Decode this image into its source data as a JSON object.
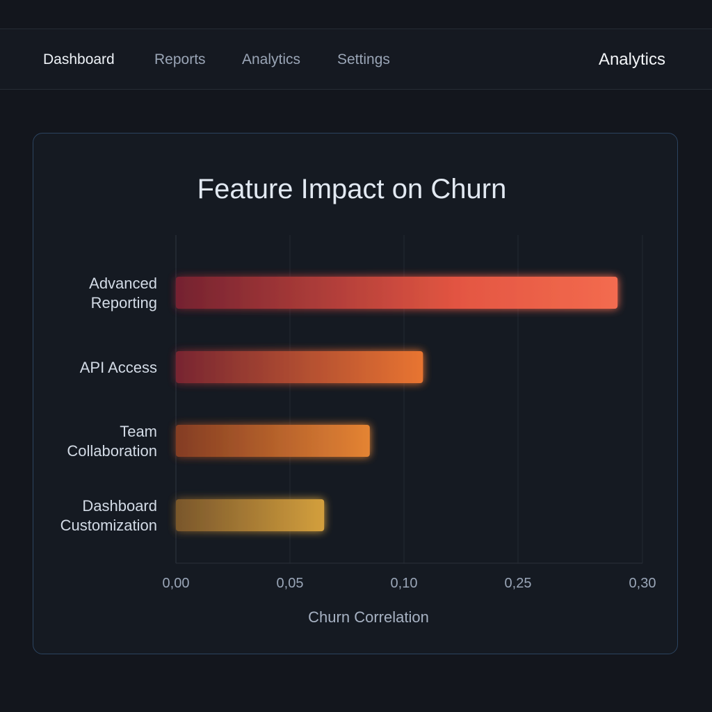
{
  "nav": {
    "items": [
      {
        "label": "Dashboard",
        "active": true
      },
      {
        "label": "Reports",
        "active": false
      },
      {
        "label": "Analytics",
        "active": false
      },
      {
        "label": "Settings",
        "active": false
      }
    ],
    "page_label": "Analytics"
  },
  "chart_data": {
    "type": "bar",
    "orientation": "horizontal",
    "title": "Feature Impact on Churn",
    "xlabel": "Churn Correlation",
    "ylabel": "",
    "categories": [
      "Advanced Reporting",
      "API Access",
      "Team Collaboration",
      "Dashboard Customization"
    ],
    "values": [
      0.29,
      0.125,
      0.085,
      0.065
    ],
    "xticks": [
      "0,00",
      "0,05",
      "0,10",
      "0,25",
      "0,30"
    ],
    "xlim": [
      0,
      0.3
    ],
    "grid": true,
    "colors": [
      [
        "#7a2331",
        "#f05a44",
        "#ff7052"
      ],
      [
        "#7d2630",
        "#f47a32"
      ],
      [
        "#8a3f24",
        "#f08a34"
      ],
      [
        "#7f5a2c",
        "#dea73f"
      ]
    ]
  }
}
